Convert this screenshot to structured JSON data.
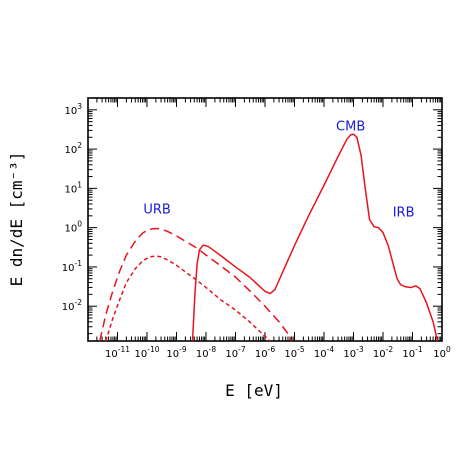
{
  "chart_data": {
    "type": "line",
    "title": "",
    "xlabel": "E [eV]",
    "ylabel": "E dn/dE [cm⁻³]",
    "xscale": "log",
    "yscale": "log",
    "xlim": [
      1e-12,
      1
    ],
    "ylim": [
      0.0013,
      2000
    ],
    "x_tick_labels": [
      {
        "value": 1e-11,
        "base": "10",
        "exp": "-11"
      },
      {
        "value": 1e-10,
        "base": "10",
        "exp": "-10"
      },
      {
        "value": 1e-09,
        "base": "10",
        "exp": "-9"
      },
      {
        "value": 1e-08,
        "base": "10",
        "exp": "-8"
      },
      {
        "value": 1e-07,
        "base": "10",
        "exp": "-7"
      },
      {
        "value": 1e-06,
        "base": "10",
        "exp": "-6"
      },
      {
        "value": 1e-05,
        "base": "10",
        "exp": "-5"
      },
      {
        "value": 0.0001,
        "base": "10",
        "exp": "-4"
      },
      {
        "value": 0.001,
        "base": "10",
        "exp": "-3"
      },
      {
        "value": 0.01,
        "base": "10",
        "exp": "-2"
      },
      {
        "value": 0.1,
        "base": "10",
        "exp": "-1"
      },
      {
        "value": 1,
        "base": "10",
        "exp": "0"
      }
    ],
    "y_tick_labels": [
      {
        "value": 0.01,
        "base": "10",
        "exp": "-2"
      },
      {
        "value": 0.1,
        "base": "10",
        "exp": "-1"
      },
      {
        "value": 1,
        "base": "10",
        "exp": "0"
      },
      {
        "value": 10,
        "base": "10",
        "exp": "1"
      },
      {
        "value": 100,
        "base": "10",
        "exp": "2"
      },
      {
        "value": 1000,
        "base": "10",
        "exp": "3"
      }
    ],
    "annotations": [
      {
        "text": "CMB",
        "x": 0.0008,
        "y": 300
      },
      {
        "text": "URB",
        "x": 2.2e-10,
        "y": 2.3
      },
      {
        "text": "IRB",
        "x": 0.05,
        "y": 1.9
      }
    ],
    "series": [
      {
        "style": "solid",
        "color": "#e8141e",
        "points": [
          [
            3.5e-09,
            0.0013
          ],
          [
            4.2e-09,
            0.02
          ],
          [
            5e-09,
            0.12
          ],
          [
            6e-09,
            0.27
          ],
          [
            8e-09,
            0.36
          ],
          [
            1.2e-08,
            0.33
          ],
          [
            2e-08,
            0.25
          ],
          [
            4e-08,
            0.17
          ],
          [
            1e-07,
            0.1
          ],
          [
            3e-07,
            0.055
          ],
          [
            6e-07,
            0.034
          ],
          [
            1e-06,
            0.024
          ],
          [
            1.5e-06,
            0.021
          ],
          [
            2.2e-06,
            0.027
          ],
          [
            4e-06,
            0.075
          ],
          [
            1e-05,
            0.35
          ],
          [
            3e-05,
            2
          ],
          [
            0.0001,
            12
          ],
          [
            0.0003,
            65
          ],
          [
            0.0006,
            180
          ],
          [
            0.0008,
            230
          ],
          [
            0.001,
            240
          ],
          [
            0.0013,
            200
          ],
          [
            0.0018,
            70
          ],
          [
            0.0025,
            10
          ],
          [
            0.0035,
            1.6
          ],
          [
            0.005,
            1.05
          ],
          [
            0.007,
            1.0
          ],
          [
            0.01,
            0.75
          ],
          [
            0.015,
            0.35
          ],
          [
            0.022,
            0.12
          ],
          [
            0.03,
            0.05
          ],
          [
            0.04,
            0.035
          ],
          [
            0.06,
            0.031
          ],
          [
            0.09,
            0.03
          ],
          [
            0.13,
            0.033
          ],
          [
            0.18,
            0.028
          ],
          [
            0.3,
            0.012
          ],
          [
            0.5,
            0.004
          ],
          [
            0.7,
            0.0013
          ]
        ]
      },
      {
        "style": "long-dash",
        "color": "#e8141e",
        "points": [
          [
            2.5e-12,
            0.0013
          ],
          [
            4e-12,
            0.006
          ],
          [
            7e-12,
            0.025
          ],
          [
            1.2e-11,
            0.08
          ],
          [
            2e-11,
            0.2
          ],
          [
            4e-11,
            0.45
          ],
          [
            7e-11,
            0.72
          ],
          [
            1e-10,
            0.85
          ],
          [
            1.5e-10,
            0.93
          ],
          [
            2.2e-10,
            0.95
          ],
          [
            3e-10,
            0.92
          ],
          [
            5e-10,
            0.8
          ],
          [
            1e-09,
            0.62
          ],
          [
            2e-09,
            0.45
          ],
          [
            5e-09,
            0.3
          ],
          [
            1e-08,
            0.2
          ],
          [
            3e-08,
            0.11
          ],
          [
            1e-07,
            0.055
          ],
          [
            3e-07,
            0.025
          ],
          [
            1e-06,
            0.01
          ],
          [
            3e-06,
            0.004
          ],
          [
            6e-06,
            0.002
          ],
          [
            8e-06,
            0.0013
          ]
        ]
      },
      {
        "style": "short-dash",
        "color": "#e8141e",
        "points": [
          [
            4e-12,
            0.0013
          ],
          [
            7e-12,
            0.005
          ],
          [
            1.2e-11,
            0.015
          ],
          [
            2e-11,
            0.04
          ],
          [
            4e-11,
            0.09
          ],
          [
            7e-11,
            0.14
          ],
          [
            1.2e-10,
            0.18
          ],
          [
            2e-10,
            0.19
          ],
          [
            3e-10,
            0.18
          ],
          [
            5e-10,
            0.15
          ],
          [
            1e-09,
            0.11
          ],
          [
            2e-09,
            0.075
          ],
          [
            5e-09,
            0.045
          ],
          [
            1e-08,
            0.03
          ],
          [
            3e-08,
            0.015
          ],
          [
            1e-07,
            0.008
          ],
          [
            3e-07,
            0.004
          ],
          [
            8e-07,
            0.002
          ],
          [
            1.5e-06,
            0.0013
          ]
        ]
      }
    ]
  }
}
